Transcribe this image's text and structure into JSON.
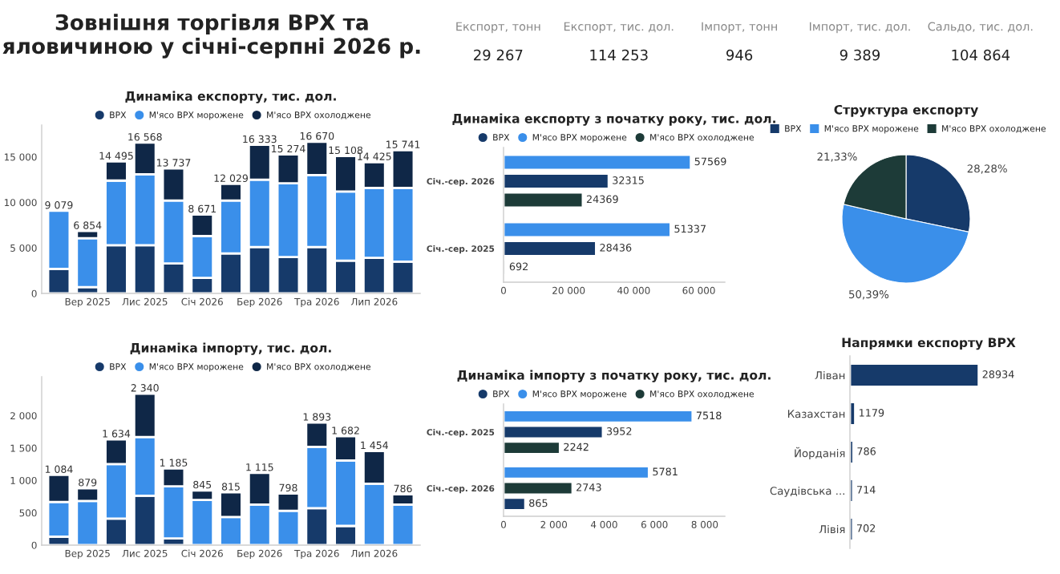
{
  "chart_data": [
    {
      "type": "other",
      "title": "Зовнішня торгівля ВРХ та яловичиною у січні-серпні 2026 р.",
      "annotations": [
        "Експорт, тонн",
        "29 267",
        "Експорт, тис. дол.",
        "114 253",
        "Імпорт, тонн",
        "946",
        "Імпорт, тис. дол.",
        "9 389",
        "Сальдо, тис. дол.",
        "104 864"
      ]
    },
    {
      "type": "bar",
      "stacked": true,
      "title": "Динаміка експорту, тис. дол.",
      "legend": "top",
      "categories": [
        null,
        "Вер 2025",
        null,
        "Лис 2025",
        null,
        "Січ 2026",
        null,
        "Бер 2026",
        null,
        "Тра 2026",
        null,
        "Лип 2026",
        null
      ],
      "series": [
        {
          "name": "ВРХ",
          "color": "#163a6a",
          "values": [
            2700,
            700,
            5300,
            5300,
            3300,
            1700,
            4400,
            5100,
            4000,
            5100,
            3600,
            3900,
            3500
          ]
        },
        {
          "name": "М'ясо ВРХ морожене",
          "color": "#3a8fea",
          "values": [
            6379,
            5370,
            7100,
            7800,
            6900,
            4600,
            5800,
            7400,
            8100,
            7900,
            7600,
            7700,
            8100
          ]
        },
        {
          "name": "М'ясо ВРХ охолоджене",
          "color": "#0f2747",
          "values": [
            null,
            784,
            2095,
            3468,
            3537,
            2371,
            1829,
            3833,
            3174,
            3670,
            3908,
            2825,
            4141
          ]
        }
      ],
      "totals": [
        "9 079",
        "6 854",
        "14 495",
        "16 568",
        "13 737",
        "8 671",
        "12 029",
        "16 333",
        "15 274",
        "16 670",
        "15 108",
        "14 425",
        "15 741"
      ],
      "ylim": [
        0,
        18500
      ],
      "yticks": [
        0,
        {
          "value": 5000,
          "label": "5 000"
        },
        {
          "value": 10000,
          "label": "10 000"
        },
        {
          "value": 15000,
          "label": "15 000"
        }
      ]
    },
    {
      "type": "bar",
      "orientation": "horizontal",
      "title": "Динаміка експорту з початку року, тис. дол.",
      "legend": "top",
      "categories": [
        "Січ.-сер. 2026",
        "Січ.-сер. 2025"
      ],
      "series": [
        {
          "name": "ВРХ",
          "color": "#163a6a",
          "values": [
            32315,
            28436
          ]
        },
        {
          "name": "М'ясо ВРХ морожене",
          "color": "#3a8fea",
          "values": [
            57569,
            51337
          ]
        },
        {
          "name": "М'ясо ВРХ охолоджене",
          "color": "#1d3b38",
          "values": [
            24369,
            692
          ]
        }
      ],
      "data_labels": true,
      "xlim": [
        0,
        68000
      ],
      "xticks": [
        0,
        {
          "value": 20000,
          "label": "20 000"
        },
        {
          "value": 40000,
          "label": "40 000"
        },
        {
          "value": 60000,
          "label": "60 000"
        }
      ]
    },
    {
      "type": "pie",
      "title": "Структура експорту",
      "legend": "top",
      "categories": [
        "ВРХ",
        "М'ясо ВРХ морожене",
        "М'ясо ВРХ охолоджене"
      ],
      "values": [
        28.28,
        50.39,
        21.33
      ],
      "colors": [
        "#163a6a",
        "#3a8fea",
        "#1d3b38"
      ],
      "value_labels": [
        "28,28%",
        "50,39%",
        "21,33%"
      ]
    },
    {
      "type": "bar",
      "stacked": true,
      "title": "Динаміка імпорту, тис. дол.",
      "legend": "top",
      "categories": [
        null,
        "Вер 2025",
        null,
        "Лис 2025",
        null,
        "Січ 2026",
        null,
        "Бер 2026",
        null,
        "Тра 2026",
        null,
        "Лип 2026",
        null
      ],
      "series": [
        {
          "name": "ВРХ",
          "color": "#163a6a",
          "values": [
            130,
            0,
            410,
            763,
            104,
            0,
            0,
            0,
            0,
            570,
            297,
            0,
            0
          ]
        },
        {
          "name": "М'ясо ВРХ морожене",
          "color": "#3a8fea",
          "values": [
            537,
            683,
            843,
            908,
            804,
            699,
            434,
            627,
            530,
            948,
            1012,
            948,
            627
          ]
        },
        {
          "name": "М'ясо ВРХ охолоджене",
          "color": "#0f2747",
          "values": [
            417,
            196,
            381,
            669,
            277,
            146,
            381,
            488,
            268,
            375,
            373,
            506,
            159
          ]
        }
      ],
      "totals": [
        "1 084",
        "879",
        "1 634",
        "2 340",
        "1 185",
        "845",
        "815",
        "1 115",
        "798",
        "1 893",
        "1 682",
        "1 454",
        "786"
      ],
      "ylim": [
        0,
        2600
      ],
      "yticks": [
        0,
        500,
        {
          "value": 1000,
          "label": "1 000"
        },
        {
          "value": 1500,
          "label": "1 500"
        },
        {
          "value": 2000,
          "label": "2 000"
        }
      ]
    },
    {
      "type": "bar",
      "orientation": "horizontal",
      "title": "Динаміка імпорту з початку року, тис. дол.",
      "legend": "top",
      "categories": [
        "Січ.-сер. 2025",
        "Січ.-сер. 2026"
      ],
      "series": [
        {
          "name": "ВРХ",
          "color": "#163a6a",
          "values": [
            3952,
            865
          ]
        },
        {
          "name": "М'ясо ВРХ морожене",
          "color": "#3a8fea",
          "values": [
            7518,
            5781
          ]
        },
        {
          "name": "М'ясо ВРХ охолоджене",
          "color": "#1d3b38",
          "values": [
            2242,
            2743
          ]
        }
      ],
      "data_labels": true,
      "xlim": [
        0,
        8800
      ],
      "xticks": [
        0,
        {
          "value": 2000,
          "label": "2 000"
        },
        {
          "value": 4000,
          "label": "4 000"
        },
        {
          "value": 6000,
          "label": "6 000"
        },
        {
          "value": 8000,
          "label": "8 000"
        }
      ]
    },
    {
      "type": "bar",
      "orientation": "horizontal",
      "title": "Напрямки експорту ВРХ",
      "categories": [
        "Ліван",
        "Казахстан",
        "Йорданія",
        "Саудівська ...",
        "Лівія"
      ],
      "values": [
        28934,
        1179,
        786,
        714,
        702
      ],
      "color": "#163a6a",
      "data_labels": true,
      "tick_labels": "y"
    }
  ]
}
